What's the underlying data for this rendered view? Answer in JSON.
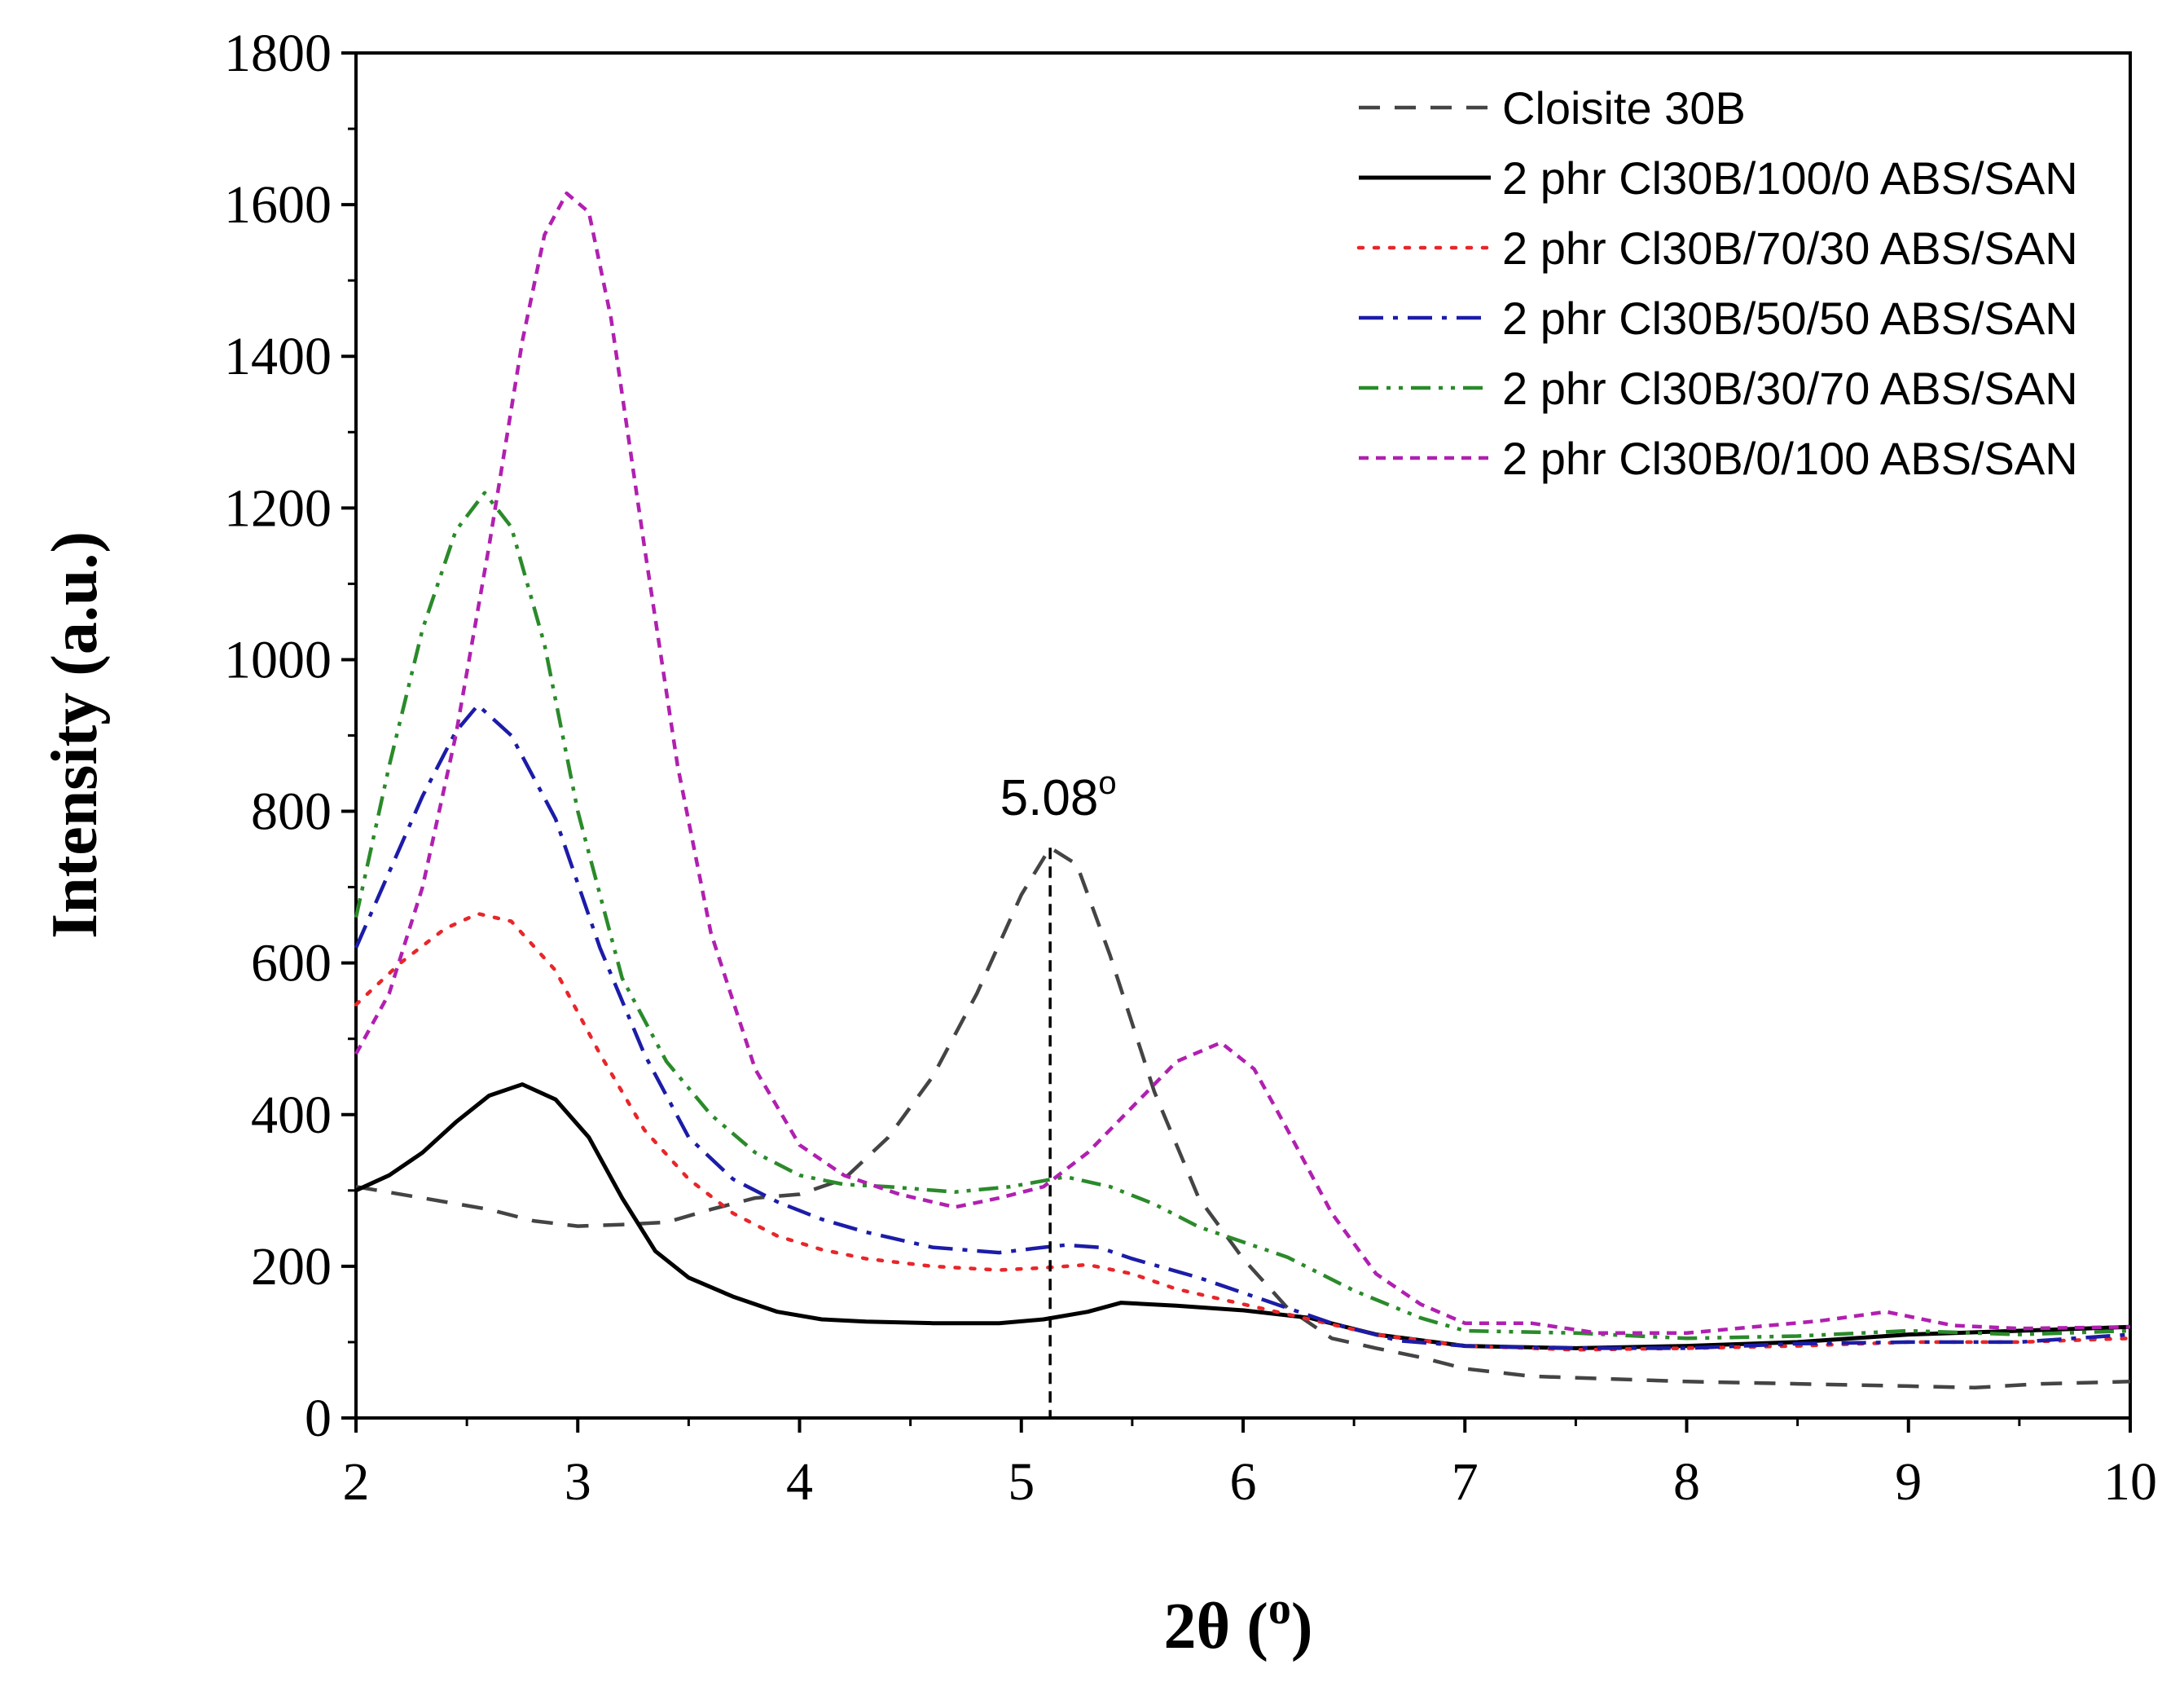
{
  "chart_data": {
    "type": "line",
    "title": "",
    "xlabel": "2θ (",
    "xlabel_sup": "o",
    "xlabel_close": ")",
    "ylabel": "Intensity (a.u.)",
    "xlim": [
      2,
      10
    ],
    "ylim": [
      0,
      1800
    ],
    "x_ticks": [
      2,
      3,
      4,
      5,
      6,
      7,
      8,
      9,
      10
    ],
    "y_ticks": [
      0,
      200,
      400,
      600,
      800,
      1000,
      1200,
      1400,
      1600,
      1800
    ],
    "legend_position": "top-right",
    "annotation": {
      "text": "5.08",
      "sup": "o",
      "x": 5.13
    },
    "series": [
      {
        "name": "Cloisite 30B",
        "color": "#444444",
        "style": "dash",
        "x": [
          2.0,
          2.3,
          2.6,
          2.8,
          3.0,
          3.2,
          3.4,
          3.6,
          3.8,
          4.0,
          4.2,
          4.4,
          4.6,
          4.8,
          5.0,
          5.13,
          5.25,
          5.4,
          5.6,
          5.8,
          6.0,
          6.2,
          6.4,
          6.6,
          6.8,
          7.0,
          7.3,
          7.6,
          8.0,
          8.5,
          9.0,
          9.3,
          9.6,
          10.0
        ],
        "values": [
          305,
          290,
          275,
          260,
          253,
          255,
          258,
          275,
          290,
          295,
          315,
          370,
          450,
          560,
          690,
          752,
          730,
          610,
          430,
          290,
          210,
          145,
          105,
          92,
          80,
          65,
          55,
          52,
          48,
          45,
          42,
          40,
          45,
          48
        ]
      },
      {
        "name": "2 phr Cl30B/100/0 ABS/SAN",
        "color": "#000000",
        "style": "solid",
        "x": [
          2.0,
          2.15,
          2.3,
          2.45,
          2.6,
          2.75,
          2.9,
          3.05,
          3.2,
          3.35,
          3.5,
          3.7,
          3.9,
          4.1,
          4.3,
          4.6,
          4.9,
          5.1,
          5.3,
          5.45,
          5.7,
          6.0,
          6.3,
          6.6,
          7.0,
          7.5,
          8.0,
          8.5,
          9.0,
          9.5,
          10.0
        ],
        "values": [
          300,
          320,
          350,
          390,
          425,
          440,
          420,
          370,
          290,
          220,
          185,
          160,
          140,
          130,
          127,
          125,
          125,
          130,
          140,
          152,
          148,
          142,
          132,
          110,
          95,
          92,
          95,
          100,
          110,
          115,
          120
        ]
      },
      {
        "name": "2 phr Cl30B/70/30 ABS/SAN",
        "color": "#e8262a",
        "style": "dot",
        "x": [
          2.0,
          2.2,
          2.4,
          2.55,
          2.7,
          2.9,
          3.1,
          3.3,
          3.5,
          3.7,
          3.9,
          4.1,
          4.3,
          4.6,
          4.9,
          5.1,
          5.3,
          5.5,
          5.7,
          6.0,
          6.3,
          6.6,
          7.0,
          7.5,
          8.0,
          8.5,
          9.0,
          9.5,
          10.0
        ],
        "values": [
          545,
          600,
          645,
          665,
          655,
          590,
          480,
          380,
          315,
          270,
          240,
          222,
          210,
          200,
          195,
          198,
          202,
          190,
          170,
          150,
          130,
          110,
          95,
          90,
          92,
          95,
          100,
          100,
          105
        ]
      },
      {
        "name": "2 phr Cl30B/50/50 ABS/SAN",
        "color": "#1c1ca8",
        "style": "dashdot",
        "x": [
          2.0,
          2.15,
          2.3,
          2.45,
          2.55,
          2.7,
          2.9,
          3.1,
          3.3,
          3.5,
          3.7,
          3.9,
          4.1,
          4.3,
          4.6,
          4.9,
          5.1,
          5.2,
          5.35,
          5.5,
          5.8,
          6.1,
          6.4,
          6.7,
          7.0,
          7.5,
          8.0,
          8.5,
          9.0,
          9.5,
          10.0
        ],
        "values": [
          620,
          720,
          820,
          905,
          940,
          900,
          790,
          620,
          480,
          370,
          315,
          285,
          262,
          245,
          225,
          218,
          225,
          228,
          225,
          210,
          185,
          155,
          125,
          102,
          95,
          92,
          92,
          98,
          100,
          100,
          110
        ]
      },
      {
        "name": "2 phr Cl30B/30/70 ABS/SAN",
        "color": "#2a8a2a",
        "style": "dashdotdot",
        "x": [
          2.0,
          2.15,
          2.3,
          2.45,
          2.58,
          2.7,
          2.85,
          3.0,
          3.2,
          3.4,
          3.6,
          3.8,
          4.0,
          4.2,
          4.4,
          4.7,
          4.95,
          5.2,
          5.4,
          5.6,
          5.8,
          6.0,
          6.2,
          6.5,
          6.8,
          7.0,
          7.5,
          8.0,
          8.5,
          9.0,
          9.5,
          10.0
        ],
        "values": [
          660,
          860,
          1040,
          1170,
          1220,
          1175,
          1020,
          800,
          580,
          470,
          400,
          350,
          320,
          308,
          305,
          298,
          305,
          318,
          305,
          282,
          252,
          232,
          212,
          168,
          132,
          115,
          112,
          105,
          108,
          115,
          110,
          115
        ]
      },
      {
        "name": "2 phr Cl30B/0/100 ABS/SAN",
        "color": "#b020b0",
        "style": "shortdash",
        "x": [
          2.0,
          2.15,
          2.3,
          2.45,
          2.6,
          2.75,
          2.85,
          2.95,
          3.05,
          3.15,
          3.3,
          3.45,
          3.6,
          3.8,
          4.0,
          4.2,
          4.45,
          4.7,
          4.9,
          5.1,
          5.3,
          5.5,
          5.7,
          5.9,
          6.05,
          6.2,
          6.4,
          6.6,
          6.8,
          7.0,
          7.3,
          7.6,
          8.0,
          8.3,
          8.6,
          8.9,
          9.2,
          9.5,
          10.0
        ],
        "values": [
          480,
          560,
          700,
          900,
          1150,
          1420,
          1560,
          1615,
          1590,
          1450,
          1150,
          860,
          640,
          460,
          360,
          320,
          295,
          278,
          290,
          305,
          350,
          410,
          470,
          495,
          460,
          380,
          270,
          190,
          150,
          125,
          125,
          112,
          112,
          120,
          128,
          140,
          122,
          118,
          120
        ]
      }
    ]
  }
}
